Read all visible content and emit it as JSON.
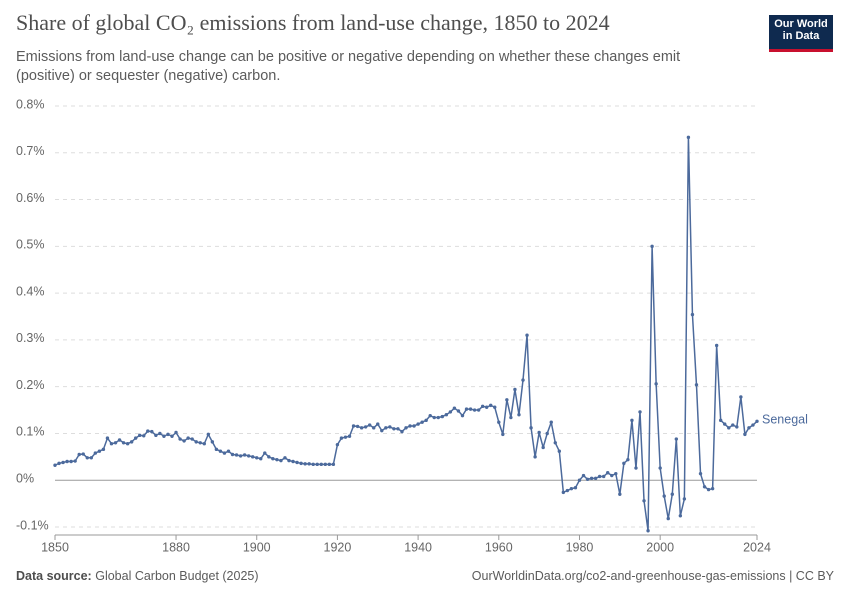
{
  "chart_data": {
    "type": "line",
    "title": "Share of global CO₂ emissions from land-use change, 1850 to 2024",
    "subtitle": "Emissions from land-use change can be positive or negative depending on whether these changes emit (positive) or sequester (negative) carbon.",
    "logo": [
      "Our World",
      "in Data"
    ],
    "source_label": "Data source:",
    "source": "Global Carbon Budget (2025)",
    "footer": "OurWorldinData.org/co2-and-greenhouse-gas-emissions | CC BY",
    "x": [
      1850,
      1851,
      1852,
      1853,
      1854,
      1855,
      1856,
      1857,
      1858,
      1859,
      1860,
      1861,
      1862,
      1863,
      1864,
      1865,
      1866,
      1867,
      1868,
      1869,
      1870,
      1871,
      1872,
      1873,
      1874,
      1875,
      1876,
      1877,
      1878,
      1879,
      1880,
      1881,
      1882,
      1883,
      1884,
      1885,
      1886,
      1887,
      1888,
      1889,
      1890,
      1891,
      1892,
      1893,
      1894,
      1895,
      1896,
      1897,
      1898,
      1899,
      1900,
      1901,
      1902,
      1903,
      1904,
      1905,
      1906,
      1907,
      1908,
      1909,
      1910,
      1911,
      1912,
      1913,
      1914,
      1915,
      1916,
      1917,
      1918,
      1919,
      1920,
      1921,
      1922,
      1923,
      1924,
      1925,
      1926,
      1927,
      1928,
      1929,
      1930,
      1931,
      1932,
      1933,
      1934,
      1935,
      1936,
      1937,
      1938,
      1939,
      1940,
      1941,
      1942,
      1943,
      1944,
      1945,
      1946,
      1947,
      1948,
      1949,
      1950,
      1951,
      1952,
      1953,
      1954,
      1955,
      1956,
      1957,
      1958,
      1959,
      1960,
      1961,
      1962,
      1963,
      1964,
      1965,
      1966,
      1967,
      1968,
      1969,
      1970,
      1971,
      1972,
      1973,
      1974,
      1975,
      1976,
      1977,
      1978,
      1979,
      1980,
      1981,
      1982,
      1983,
      1984,
      1985,
      1986,
      1987,
      1988,
      1989,
      1990,
      1991,
      1992,
      1993,
      1994,
      1995,
      1996,
      1997,
      1998,
      1999,
      2000,
      2001,
      2002,
      2003,
      2004,
      2005,
      2006,
      2007,
      2008,
      2009,
      2010,
      2011,
      2012,
      2013,
      2014,
      2015,
      2016,
      2017,
      2018,
      2019,
      2020,
      2021,
      2022,
      2023,
      2024
    ],
    "series": [
      {
        "name": "Senegal",
        "color": "#4c6a9c",
        "values": [
          0.032,
          0.036,
          0.038,
          0.04,
          0.04,
          0.041,
          0.055,
          0.056,
          0.048,
          0.048,
          0.058,
          0.062,
          0.066,
          0.09,
          0.078,
          0.08,
          0.086,
          0.08,
          0.078,
          0.082,
          0.09,
          0.096,
          0.095,
          0.105,
          0.104,
          0.096,
          0.1,
          0.094,
          0.098,
          0.094,
          0.102,
          0.088,
          0.084,
          0.09,
          0.088,
          0.082,
          0.08,
          0.078,
          0.098,
          0.082,
          0.066,
          0.062,
          0.058,
          0.062,
          0.055,
          0.054,
          0.052,
          0.054,
          0.052,
          0.05,
          0.048,
          0.046,
          0.058,
          0.05,
          0.046,
          0.044,
          0.042,
          0.048,
          0.042,
          0.04,
          0.038,
          0.036,
          0.035,
          0.035,
          0.034,
          0.034,
          0.034,
          0.034,
          0.034,
          0.034,
          0.076,
          0.09,
          0.092,
          0.094,
          0.116,
          0.115,
          0.112,
          0.114,
          0.118,
          0.112,
          0.12,
          0.106,
          0.112,
          0.114,
          0.11,
          0.11,
          0.104,
          0.112,
          0.116,
          0.116,
          0.12,
          0.124,
          0.128,
          0.138,
          0.134,
          0.134,
          0.136,
          0.14,
          0.146,
          0.154,
          0.148,
          0.138,
          0.152,
          0.152,
          0.15,
          0.15,
          0.158,
          0.156,
          0.16,
          0.156,
          0.124,
          0.098,
          0.172,
          0.134,
          0.194,
          0.14,
          0.214,
          0.31,
          0.112,
          0.05,
          0.102,
          0.07,
          0.1,
          0.124,
          0.08,
          0.062,
          -0.026,
          -0.022,
          -0.018,
          -0.016,
          0.0,
          0.01,
          0.002,
          0.004,
          0.004,
          0.008,
          0.008,
          0.016,
          0.01,
          0.014,
          -0.03,
          0.036,
          0.044,
          0.128,
          0.026,
          0.146,
          -0.044,
          -0.108,
          0.5,
          0.206,
          0.026,
          -0.034,
          -0.082,
          -0.03,
          0.088,
          -0.076,
          -0.04,
          0.733,
          0.354,
          0.204,
          0.014,
          -0.014,
          -0.02,
          -0.018,
          0.288,
          0.128,
          0.12,
          0.112,
          0.118,
          0.114,
          0.178,
          0.098,
          0.112,
          0.118,
          0.126
        ]
      }
    ],
    "xlim": [
      1850,
      2024
    ],
    "xticks": [
      1850,
      1880,
      1900,
      1920,
      1940,
      1960,
      1980,
      2000,
      2024
    ],
    "ylim": [
      -0.1,
      0.8
    ],
    "yticks": [
      {
        "value": -0.1,
        "label": "-0.1%"
      },
      {
        "value": 0,
        "label": "0%"
      },
      {
        "value": 0.1,
        "label": "0.1%"
      },
      {
        "value": 0.2,
        "label": "0.2%"
      },
      {
        "value": 0.3,
        "label": "0.3%"
      },
      {
        "value": 0.4,
        "label": "0.4%"
      },
      {
        "value": 0.5,
        "label": "0.5%"
      },
      {
        "value": 0.6,
        "label": "0.6%"
      },
      {
        "value": 0.7,
        "label": "0.7%"
      },
      {
        "value": 0.8,
        "label": "0.8%"
      }
    ],
    "grid": true
  }
}
